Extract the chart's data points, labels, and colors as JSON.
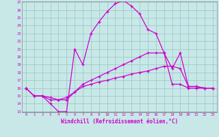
{
  "xlabel": "Windchill (Refroidissement éolien,°C)",
  "x_ticks": [
    0,
    1,
    2,
    3,
    4,
    5,
    6,
    7,
    8,
    9,
    10,
    11,
    12,
    13,
    14,
    15,
    16,
    17,
    18,
    19,
    20,
    21,
    22,
    23
  ],
  "ylim": [
    13,
    27
  ],
  "xlim": [
    -0.5,
    23.5
  ],
  "yticks": [
    13,
    14,
    15,
    16,
    17,
    18,
    19,
    20,
    21,
    22,
    23,
    24,
    25,
    26,
    27
  ],
  "background_color": "#c8e8e8",
  "line_color": "#cc00cc",
  "grid_color": "#a0c8c8",
  "line1_x": [
    0,
    1,
    2,
    3,
    4,
    5,
    6,
    7,
    8,
    9,
    10,
    11,
    12,
    13,
    14,
    15,
    16,
    17,
    18,
    19,
    20,
    21,
    22,
    23
  ],
  "line1_y": [
    16.0,
    15.0,
    15.0,
    14.0,
    13.0,
    13.0,
    21.0,
    19.0,
    23.0,
    24.5,
    25.8,
    26.8,
    27.2,
    26.5,
    25.5,
    23.5,
    23.0,
    20.5,
    16.5,
    16.5,
    16.0,
    16.0,
    16.0,
    16.0
  ],
  "line2_x": [
    0,
    1,
    2,
    3,
    4,
    5,
    6,
    7,
    8,
    9,
    10,
    11,
    12,
    13,
    14,
    15,
    16,
    17,
    18,
    19,
    20,
    21,
    22,
    23
  ],
  "line2_y": [
    16.0,
    15.0,
    15.0,
    14.5,
    14.5,
    14.5,
    15.5,
    16.5,
    17.0,
    17.5,
    18.0,
    18.5,
    19.0,
    19.5,
    20.0,
    20.5,
    20.5,
    20.5,
    18.5,
    20.5,
    16.2,
    16.2,
    16.0,
    16.0
  ],
  "line3_x": [
    0,
    1,
    2,
    3,
    4,
    5,
    6,
    7,
    8,
    9,
    10,
    11,
    12,
    13,
    14,
    15,
    16,
    17,
    18,
    19,
    20,
    21,
    22,
    23
  ],
  "line3_y": [
    16.0,
    15.0,
    15.0,
    14.8,
    14.5,
    14.8,
    15.5,
    16.2,
    16.5,
    16.8,
    17.0,
    17.3,
    17.5,
    17.8,
    18.0,
    18.2,
    18.5,
    18.8,
    18.8,
    18.5,
    16.2,
    16.2,
    16.0,
    16.0
  ]
}
